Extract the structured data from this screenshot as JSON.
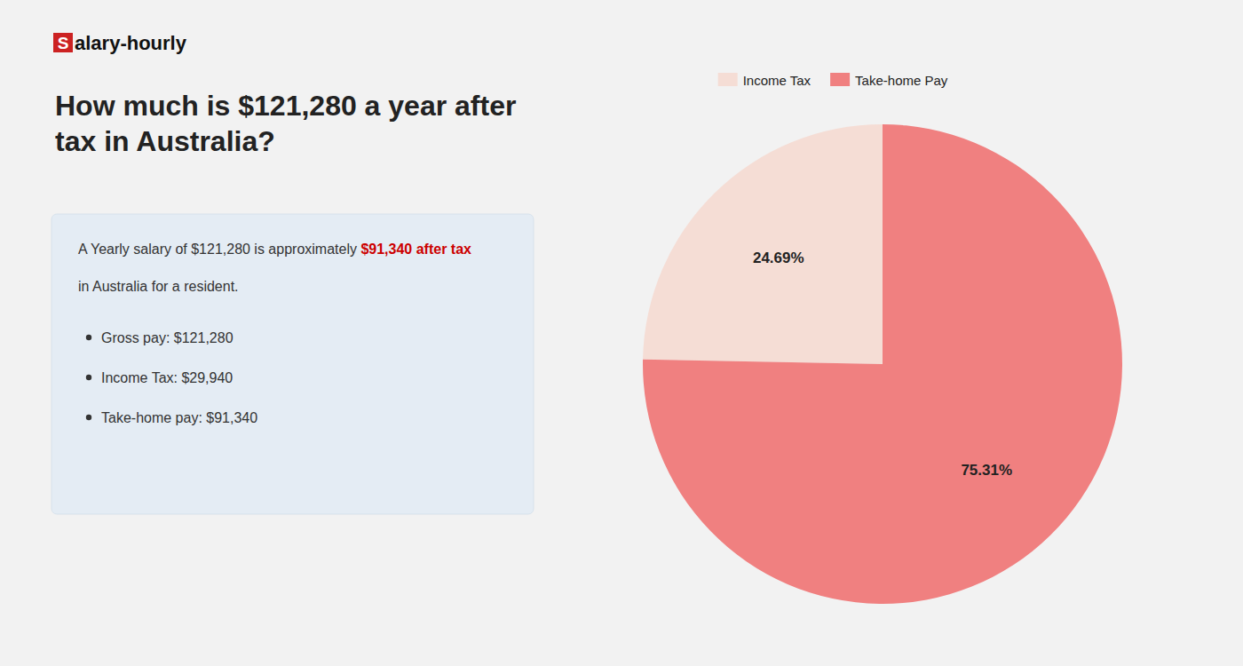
{
  "chart_data": {
    "type": "pie",
    "title": "How much is $121,280 a year after tax in Australia?",
    "categories": [
      "Income Tax",
      "Take-home Pay"
    ],
    "values": [
      24.69,
      75.31
    ],
    "value_labels": [
      "24.69%",
      "75.31%"
    ],
    "colors": [
      "#f5ddd5",
      "#f08080"
    ],
    "data_labels": true,
    "legend": "top",
    "annotations": [
      {
        "text": "S",
        "color": "#ffffff",
        "background": "#cc2222"
      },
      {
        "text": "alary-hourly",
        "color": "#111111"
      },
      {
        "text": "A Yearly salary of $121,280 is approximately ",
        "color": "#333333"
      },
      {
        "text": "$91,340 after tax",
        "color": "#cc0000"
      },
      {
        "text": "in Australia for a resident.",
        "color": "#333333"
      },
      {
        "text": "Gross pay: $121,280",
        "color": "#333333"
      },
      {
        "text": "Income Tax: $29,940",
        "color": "#333333"
      },
      {
        "text": "Take-home pay: $91,340",
        "color": "#333333"
      }
    ]
  }
}
